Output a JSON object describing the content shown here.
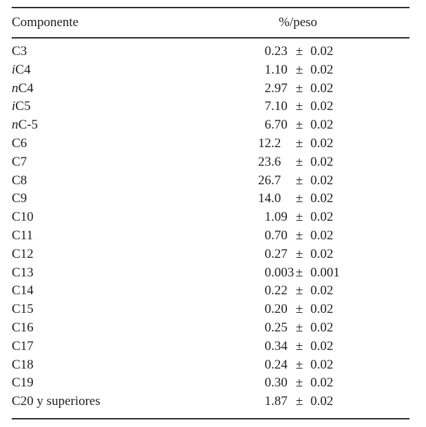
{
  "document": {
    "language": "es",
    "table": {
      "header": {
        "component_label": "Componente",
        "value_label": "%/peso"
      },
      "pm_symbol": "±",
      "rows": [
        {
          "component_prefix": "",
          "component": "C3",
          "value": "0.23",
          "uncertainty": "0.02"
        },
        {
          "component_prefix": "i",
          "component": "C4",
          "value": "1.10",
          "uncertainty": "0.02"
        },
        {
          "component_prefix": "n",
          "component": "C4",
          "value": "2.97",
          "uncertainty": "0.02"
        },
        {
          "component_prefix": "i",
          "component": "C5",
          "value": "7.10",
          "uncertainty": "0.02"
        },
        {
          "component_prefix": "n",
          "component": "C-5",
          "value": "6.70",
          "uncertainty": "0.02"
        },
        {
          "component_prefix": "",
          "component": "C6",
          "value": "12.2",
          "uncertainty": "0.02"
        },
        {
          "component_prefix": "",
          "component": "C7",
          "value": "23.6",
          "uncertainty": "0.02"
        },
        {
          "component_prefix": "",
          "component": "C8",
          "value": "26.7",
          "uncertainty": "0.02"
        },
        {
          "component_prefix": "",
          "component": "C9",
          "value": "14.0",
          "uncertainty": "0.02"
        },
        {
          "component_prefix": "",
          "component": "C10",
          "value": "1.09",
          "uncertainty": "0.02"
        },
        {
          "component_prefix": "",
          "component": "C11",
          "value": "0.70",
          "uncertainty": "0.02"
        },
        {
          "component_prefix": "",
          "component": "C12",
          "value": "0.27",
          "uncertainty": "0.02"
        },
        {
          "component_prefix": "",
          "component": "C13",
          "value": "0.003",
          "uncertainty": "0.001"
        },
        {
          "component_prefix": "",
          "component": "C14",
          "value": "0.22",
          "uncertainty": "0.02"
        },
        {
          "component_prefix": "",
          "component": "C15",
          "value": "0.20",
          "uncertainty": "0.02"
        },
        {
          "component_prefix": "",
          "component": "C16",
          "value": "0.25",
          "uncertainty": "0.02"
        },
        {
          "component_prefix": "",
          "component": "C17",
          "value": "0.34",
          "uncertainty": "0.02"
        },
        {
          "component_prefix": "",
          "component": "C18",
          "value": "0.24",
          "uncertainty": "0.02"
        },
        {
          "component_prefix": "",
          "component": "C19",
          "value": "0.30",
          "uncertainty": "0.02"
        },
        {
          "component_prefix": "",
          "component": "C20 y superiores",
          "value": "1.87",
          "uncertainty": "0.02"
        }
      ]
    }
  },
  "colors": {
    "text": "#1e1e1e",
    "rule": "#2b2b2b",
    "background": "#ffffff"
  }
}
